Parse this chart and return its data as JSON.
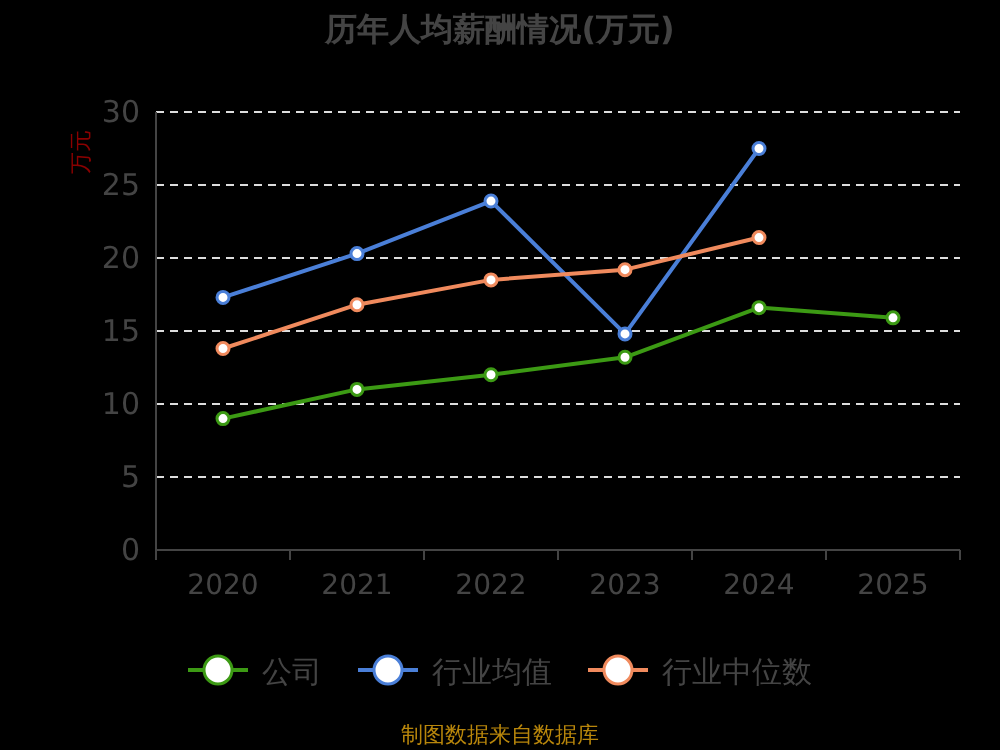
{
  "chart_data": {
    "type": "line",
    "title": "历年人均薪酬情况(万元)",
    "ylabel": "万元",
    "categories": [
      "2020",
      "2021",
      "2022",
      "2023",
      "2024",
      "2025"
    ],
    "series": [
      {
        "name": "公司",
        "color": "#3c9a14",
        "values": [
          9.0,
          11.0,
          12.0,
          13.2,
          16.6,
          15.9
        ]
      },
      {
        "name": "行业均值",
        "color": "#4a7fd8",
        "values": [
          17.3,
          20.3,
          23.9,
          14.8,
          27.5,
          null
        ]
      },
      {
        "name": "行业中位数",
        "color": "#f08a5d",
        "values": [
          13.8,
          16.8,
          18.5,
          19.2,
          21.4,
          null
        ]
      }
    ],
    "ylim": [
      0,
      30
    ],
    "yticks": [
      0,
      5,
      10,
      15,
      20,
      25,
      30
    ],
    "grid": "y",
    "legend": "bottom",
    "marker": "circle",
    "line_style": "solid",
    "annotations": [
      "制图数据来自数据库"
    ]
  }
}
